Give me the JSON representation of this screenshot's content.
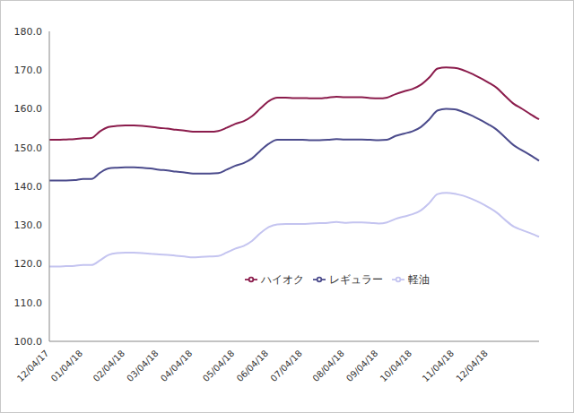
{
  "chart_data": {
    "type": "line",
    "categories": [
      "12/04/17",
      null,
      null,
      null,
      "01/04/18",
      null,
      null,
      null,
      null,
      "02/04/18",
      null,
      null,
      null,
      "03/04/18",
      null,
      null,
      null,
      "04/04/18",
      null,
      null,
      null,
      null,
      "05/04/18",
      null,
      null,
      null,
      "06/04/18",
      null,
      null,
      null,
      "07/04/18",
      null,
      null,
      null,
      null,
      "08/04/18",
      null,
      null,
      null,
      "09/04/18",
      null,
      null,
      null,
      "10/04/18",
      null,
      null,
      null,
      null,
      "11/04/18",
      null,
      null,
      null,
      "12/04/18",
      null,
      null,
      null,
      null,
      null,
      null
    ],
    "series": [
      {
        "name": "レギュラー",
        "color": "#4b4b8c",
        "values": [
          141.5,
          141.5,
          141.5,
          141.6,
          141.9,
          141.9,
          143.5,
          144.6,
          144.8,
          144.9,
          144.9,
          144.8,
          144.6,
          144.3,
          144.1,
          143.8,
          143.6,
          143.3,
          143.3,
          143.3,
          143.4,
          144.3,
          145.3,
          146.0,
          147.2,
          149.2,
          151.0,
          152.0,
          152.0,
          152.0,
          152.0,
          151.9,
          151.9,
          152.0,
          152.2,
          152.1,
          152.1,
          152.1,
          152.0,
          151.9,
          152.0,
          153.0,
          153.6,
          154.2,
          155.3,
          157.3,
          159.6,
          160.0,
          159.9,
          159.2,
          158.3,
          157.2,
          156.0,
          154.6,
          152.6,
          150.6,
          149.3,
          148.0,
          146.6
        ]
      },
      {
        "name": "ハイオク",
        "color": "#8b1c4c",
        "values": [
          152.0,
          152.0,
          152.1,
          152.2,
          152.4,
          152.5,
          154.2,
          155.3,
          155.6,
          155.7,
          155.7,
          155.6,
          155.4,
          155.1,
          154.9,
          154.6,
          154.4,
          154.1,
          154.1,
          154.1,
          154.3,
          155.1,
          156.1,
          156.8,
          158.1,
          160.1,
          162.0,
          162.9,
          162.9,
          162.8,
          162.8,
          162.7,
          162.7,
          162.9,
          163.1,
          163.0,
          163.0,
          163.0,
          162.8,
          162.7,
          162.9,
          163.8,
          164.5,
          165.1,
          166.2,
          168.1,
          170.4,
          170.7,
          170.6,
          170.0,
          169.1,
          168.0,
          166.8,
          165.4,
          163.3,
          161.3,
          160.0,
          158.6,
          157.3
        ]
      },
      {
        "name": "軽油",
        "color": "#c4c4f0",
        "values": [
          119.3,
          119.3,
          119.4,
          119.5,
          119.7,
          119.7,
          120.9,
          122.3,
          122.8,
          122.9,
          122.9,
          122.8,
          122.6,
          122.4,
          122.3,
          122.1,
          121.9,
          121.7,
          121.8,
          121.9,
          122.0,
          122.9,
          123.9,
          124.6,
          125.9,
          127.9,
          129.5,
          130.2,
          130.3,
          130.3,
          130.3,
          130.4,
          130.5,
          130.6,
          130.8,
          130.6,
          130.7,
          130.7,
          130.6,
          130.4,
          130.7,
          131.6,
          132.2,
          132.8,
          133.8,
          135.7,
          138.0,
          138.3,
          138.1,
          137.6,
          136.8,
          135.8,
          134.6,
          133.2,
          131.3,
          129.6,
          128.7,
          127.9,
          127.0
        ]
      }
    ],
    "ylim": [
      100,
      180
    ],
    "yticks": [
      {
        "value": 100,
        "label": "100.0"
      },
      {
        "value": 110,
        "label": "110.0"
      },
      {
        "value": 120,
        "label": "120.0"
      },
      {
        "value": 130,
        "label": "130.0"
      },
      {
        "value": 140,
        "label": "140.0"
      },
      {
        "value": 150,
        "label": "150.0"
      },
      {
        "value": 160,
        "label": "160.0"
      },
      {
        "value": 170,
        "label": "170.0"
      },
      {
        "value": 180,
        "label": "180.0"
      }
    ],
    "grid": false,
    "legend": "center",
    "marker": "none"
  }
}
